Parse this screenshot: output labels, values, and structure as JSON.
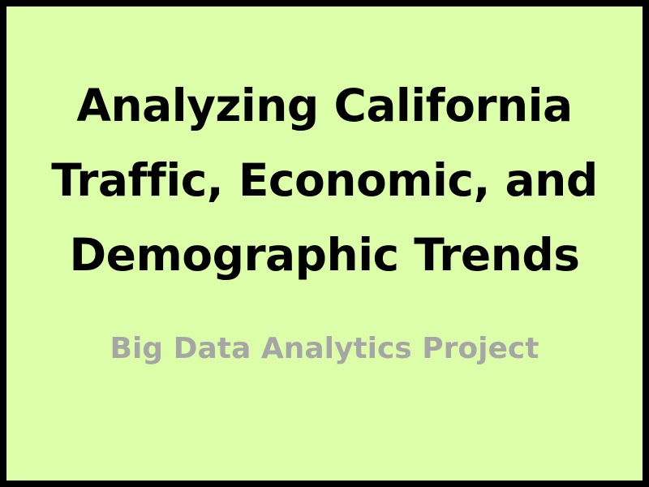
{
  "slide": {
    "title_lines": [
      "Analyzing California",
      "Traffic, Economic, and",
      "Demographic Trends"
    ],
    "subtitle": "Big Data Analytics Project"
  },
  "colors": {
    "frame": "#000000",
    "background": "#ddfea8",
    "title": "#000000",
    "subtitle": "#a6a6a6"
  }
}
